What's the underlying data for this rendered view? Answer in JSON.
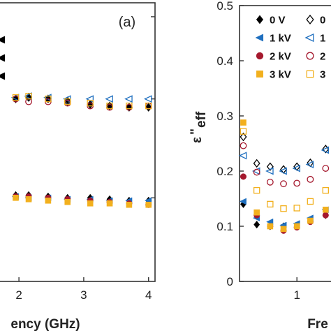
{
  "chart_data": [
    {
      "type": "scatter",
      "panel_label": "(a)",
      "xlabel": "ency (GHz)",
      "xlim": [
        1.6,
        4.1
      ],
      "ylim": [
        0,
        1
      ],
      "x_ticks": [
        "2",
        "3",
        "4"
      ],
      "series": [
        {
          "name": "0 V",
          "marker": "diamond",
          "filled": true,
          "color": "#000000",
          "points": [
            [
              1.95,
              0.655
            ],
            [
              2.15,
              0.66
            ],
            [
              2.45,
              0.655
            ],
            [
              2.75,
              0.65
            ],
            [
              3.1,
              0.635
            ],
            [
              3.4,
              0.63
            ],
            [
              3.7,
              0.625
            ],
            [
              4.0,
              0.625
            ],
            [
              1.95,
              0.31
            ],
            [
              2.15,
              0.31
            ],
            [
              2.45,
              0.305
            ],
            [
              2.75,
              0.3
            ],
            [
              3.1,
              0.3
            ],
            [
              3.4,
              0.295
            ],
            [
              3.7,
              0.29
            ],
            [
              4.0,
              0.29
            ]
          ]
        },
        {
          "name": "1 kV",
          "marker": "triangle-left",
          "filled": true,
          "color": "#1f6fbf",
          "points": [
            [
              1.95,
              0.305
            ],
            [
              2.15,
              0.3
            ],
            [
              2.45,
              0.3
            ],
            [
              2.75,
              0.295
            ],
            [
              3.1,
              0.295
            ],
            [
              3.4,
              0.29
            ],
            [
              3.7,
              0.29
            ],
            [
              4.0,
              0.29
            ]
          ]
        },
        {
          "name": "2 kV",
          "marker": "circle",
          "filled": true,
          "color": "#a5192e",
          "points": [
            [
              1.95,
              0.305
            ],
            [
              2.15,
              0.305
            ],
            [
              2.45,
              0.3
            ],
            [
              2.75,
              0.295
            ],
            [
              3.1,
              0.29
            ],
            [
              3.4,
              0.285
            ],
            [
              3.7,
              0.28
            ],
            [
              4.0,
              0.275
            ]
          ]
        },
        {
          "name": "3 kV",
          "marker": "square",
          "filled": true,
          "color": "#f2b01e",
          "points": [
            [
              1.95,
              0.3
            ],
            [
              2.15,
              0.295
            ],
            [
              2.45,
              0.29
            ],
            [
              2.75,
              0.285
            ],
            [
              3.1,
              0.28
            ],
            [
              3.4,
              0.28
            ],
            [
              3.7,
              0.275
            ],
            [
              4.0,
              0.275
            ]
          ]
        },
        {
          "name": "0 V",
          "marker": "diamond",
          "filled": false,
          "color": "#000000",
          "points": [
            [
              1.95,
              0.655
            ],
            [
              2.15,
              0.66
            ],
            [
              2.45,
              0.655
            ],
            [
              2.75,
              0.645
            ],
            [
              3.1,
              0.635
            ],
            [
              3.4,
              0.63
            ],
            [
              3.7,
              0.625
            ],
            [
              4.0,
              0.625
            ]
          ]
        },
        {
          "name": "1 kV",
          "marker": "triangle-left",
          "filled": false,
          "color": "#1f6fbf",
          "points": [
            [
              1.95,
              0.66
            ],
            [
              2.15,
              0.665
            ],
            [
              2.45,
              0.66
            ],
            [
              2.75,
              0.655
            ],
            [
              3.1,
              0.655
            ],
            [
              3.4,
              0.655
            ],
            [
              3.7,
              0.655
            ],
            [
              4.0,
              0.655
            ]
          ]
        },
        {
          "name": "2 kV",
          "marker": "circle",
          "filled": false,
          "color": "#a5192e",
          "points": [
            [
              1.95,
              0.655
            ],
            [
              2.15,
              0.645
            ],
            [
              2.45,
              0.645
            ],
            [
              2.75,
              0.64
            ],
            [
              3.1,
              0.63
            ],
            [
              3.4,
              0.625
            ],
            [
              3.7,
              0.625
            ],
            [
              4.0,
              0.63
            ]
          ]
        },
        {
          "name": "3 kV",
          "marker": "square",
          "filled": false,
          "color": "#f2b01e",
          "points": [
            [
              1.95,
              0.66
            ],
            [
              2.15,
              0.665
            ],
            [
              2.45,
              0.655
            ],
            [
              2.75,
              0.645
            ],
            [
              3.1,
              0.64
            ],
            [
              3.4,
              0.63
            ],
            [
              3.7,
              0.63
            ],
            [
              4.0,
              0.63
            ]
          ]
        }
      ],
      "legend_partial": [
        {
          "marker": "triangle-left",
          "color": "#000000"
        },
        {
          "marker": "triangle-left",
          "color": "#000000"
        },
        {
          "marker": "triangle-left",
          "color": "#000000"
        }
      ]
    },
    {
      "type": "scatter",
      "xlabel": "Fre",
      "ylabel_main": "ε",
      "ylabel_prime": "\"",
      "ylabel_sub": "eff",
      "xlim": [
        0.4,
        1.4
      ],
      "ylim": [
        0,
        0.5
      ],
      "y_ticks": [
        "0",
        "0.1",
        "0.2",
        "0.3",
        "0.4",
        "0.5"
      ],
      "x_ticks": [
        "1"
      ],
      "legend": [
        {
          "label": "0 V",
          "marker": "diamond",
          "filled": true,
          "color": "#000000"
        },
        {
          "label": "1 kV",
          "marker": "triangle-left",
          "filled": true,
          "color": "#1f6fbf"
        },
        {
          "label": "2 kV",
          "marker": "circle",
          "filled": true,
          "color": "#a5192e"
        },
        {
          "label": "3 kV",
          "marker": "square",
          "filled": true,
          "color": "#f2b01e"
        },
        {
          "label": "0",
          "marker": "diamond",
          "filled": false,
          "color": "#000000"
        },
        {
          "label": "1",
          "marker": "triangle-left",
          "filled": false,
          "color": "#1f6fbf"
        },
        {
          "label": "2",
          "marker": "circle",
          "filled": false,
          "color": "#a5192e"
        },
        {
          "label": "3",
          "marker": "square",
          "filled": false,
          "color": "#f2b01e"
        }
      ],
      "series": [
        {
          "name": "0 V",
          "marker": "diamond",
          "filled": true,
          "color": "#000000",
          "points": [
            [
              0.44,
              0.14
            ],
            [
              0.58,
              0.103
            ],
            [
              0.72,
              0.1
            ],
            [
              0.86,
              0.1
            ],
            [
              1.0,
              0.1
            ],
            [
              1.14,
              0.11
            ],
            [
              1.3,
              0.12
            ]
          ]
        },
        {
          "name": "1 kV",
          "marker": "triangle-left",
          "filled": true,
          "color": "#1f6fbf",
          "points": [
            [
              0.44,
              0.145
            ],
            [
              0.58,
              0.115
            ],
            [
              0.72,
              0.108
            ],
            [
              0.86,
              0.102
            ],
            [
              1.0,
              0.105
            ],
            [
              1.14,
              0.115
            ],
            [
              1.3,
              0.13
            ]
          ]
        },
        {
          "name": "2 kV",
          "marker": "circle",
          "filled": true,
          "color": "#a5192e",
          "points": [
            [
              0.44,
              0.19
            ],
            [
              0.58,
              0.12
            ],
            [
              0.72,
              0.1
            ],
            [
              0.86,
              0.092
            ],
            [
              1.0,
              0.098
            ],
            [
              1.14,
              0.108
            ],
            [
              1.3,
              0.12
            ]
          ]
        },
        {
          "name": "3 kV",
          "marker": "square",
          "filled": true,
          "color": "#f2b01e",
          "points": [
            [
              0.44,
              0.288
            ],
            [
              0.58,
              0.125
            ],
            [
              0.72,
              0.1
            ],
            [
              0.86,
              0.095
            ],
            [
              1.0,
              0.1
            ],
            [
              1.14,
              0.11
            ],
            [
              1.3,
              0.13
            ]
          ]
        },
        {
          "name": "0",
          "marker": "diamond",
          "filled": false,
          "color": "#000000",
          "points": [
            [
              0.44,
              0.262
            ],
            [
              0.58,
              0.214
            ],
            [
              0.72,
              0.208
            ],
            [
              0.86,
              0.203
            ],
            [
              1.0,
              0.208
            ],
            [
              1.14,
              0.215
            ],
            [
              1.3,
              0.24
            ]
          ]
        },
        {
          "name": "1",
          "marker": "triangle-left",
          "filled": false,
          "color": "#1f6fbf",
          "points": [
            [
              0.44,
              0.228
            ],
            [
              0.58,
              0.2
            ],
            [
              0.72,
              0.2
            ],
            [
              0.86,
              0.2
            ],
            [
              1.0,
              0.205
            ],
            [
              1.14,
              0.212
            ],
            [
              1.3,
              0.238
            ]
          ]
        },
        {
          "name": "2",
          "marker": "circle",
          "filled": false,
          "color": "#a5192e",
          "points": [
            [
              0.44,
              0.246
            ],
            [
              0.58,
              0.198
            ],
            [
              0.72,
              0.18
            ],
            [
              0.86,
              0.177
            ],
            [
              1.0,
              0.178
            ],
            [
              1.14,
              0.185
            ],
            [
              1.3,
              0.205
            ]
          ]
        },
        {
          "name": "3",
          "marker": "square",
          "filled": false,
          "color": "#f2b01e",
          "points": [
            [
              0.44,
              0.272
            ],
            [
              0.58,
              0.165
            ],
            [
              0.72,
              0.14
            ],
            [
              0.86,
              0.132
            ],
            [
              1.0,
              0.133
            ],
            [
              1.14,
              0.145
            ],
            [
              1.3,
              0.165
            ]
          ]
        }
      ]
    }
  ]
}
